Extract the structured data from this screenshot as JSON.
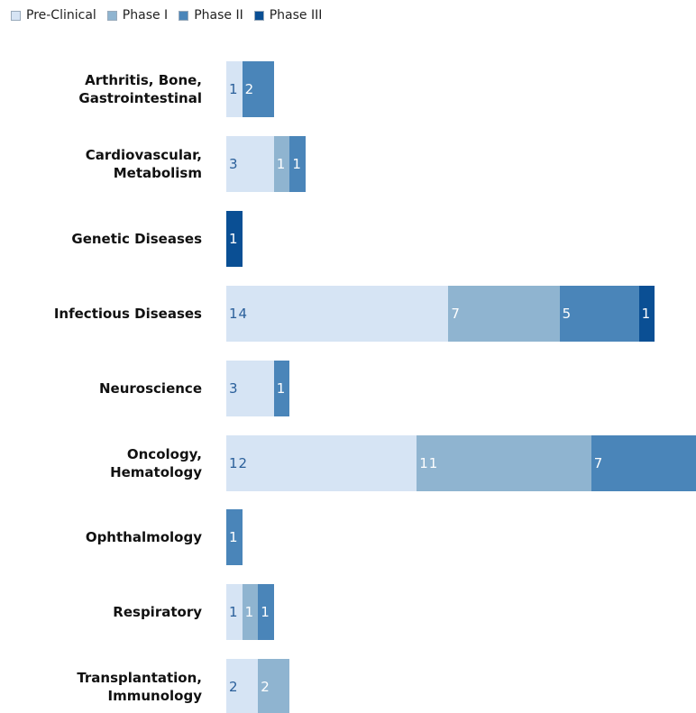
{
  "chart_data": {
    "type": "bar",
    "orientation": "horizontal",
    "stacked": true,
    "legend_position": "top-left",
    "categories": [
      "Arthritis, Bone,\nGastrointestinal",
      "Cardiovascular,\nMetabolism",
      "Genetic Diseases",
      "Infectious Diseases",
      "Neuroscience",
      "Oncology,\nHematology",
      "Ophthalmology",
      "Respiratory",
      "Transplantation,\nImmunology"
    ],
    "series": [
      {
        "name": "Pre-Clinical",
        "color": "#d6e4f4",
        "label_color": "#2a5f9a",
        "values": [
          1,
          3,
          0,
          14,
          3,
          12,
          0,
          1,
          2
        ]
      },
      {
        "name": "Phase I",
        "color": "#8fb4d0",
        "label_color": "#ffffff",
        "values": [
          0,
          1,
          0,
          7,
          0,
          11,
          0,
          1,
          2
        ]
      },
      {
        "name": "Phase II",
        "color": "#4a85b9",
        "label_color": "#ffffff",
        "values": [
          2,
          1,
          0,
          5,
          1,
          7,
          1,
          1,
          0
        ]
      },
      {
        "name": "Phase III",
        "color": "#0a4f94",
        "label_color": "#ffffff",
        "values": [
          0,
          0,
          1,
          1,
          0,
          0,
          0,
          0,
          0
        ]
      }
    ]
  }
}
